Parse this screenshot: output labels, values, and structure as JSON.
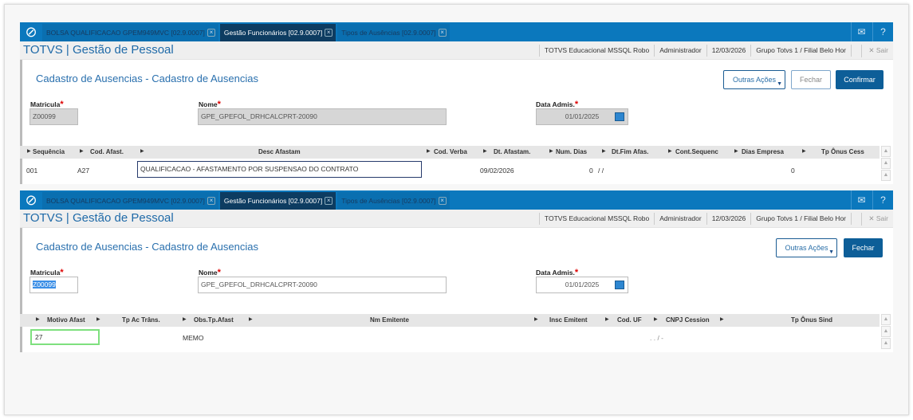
{
  "tabs": [
    {
      "label": "BOLSA QUALIFICACAO GPEM949MVC [02.9.0007]"
    },
    {
      "label": "Gestão Funcionários [02.9.0007]"
    },
    {
      "label": "Tipos de Ausências [02.9.0007]"
    }
  ],
  "app_title": "TOTVS | Gestão de Pessoal",
  "info": {
    "env": "TOTVS Educacional MSSQL Robo",
    "user": "Administrador",
    "date": "12/03/2026",
    "branch": "Grupo Totvs 1 / Filial Belo Hor",
    "logout": "Sair"
  },
  "icons": {
    "logo": "totvs-logo-icon",
    "mail": "mail-icon",
    "help": "help-icon",
    "close": "close-icon",
    "calendar": "calendar-icon"
  },
  "colors": {
    "tabbar": "#0b78bd",
    "active_tab": "#0d3c61",
    "primary": "#0d5e98",
    "focus": "#6ee06e"
  },
  "screen1": {
    "form_title": "Cadastro de Ausencias - Cadastro de Ausencias",
    "buttons": {
      "other": "Outras Ações",
      "close": "Fechar",
      "confirm": "Confirmar"
    },
    "fields": {
      "matricula_label": "Matricula",
      "matricula": "Z00099",
      "nome_label": "Nome",
      "nome": "GPE_GPEFOL_DRHCALCPRT-20090",
      "admis_label": "Data Admis.",
      "admis": "01/01/2025"
    },
    "columns": [
      "Sequência",
      "Cod. Afast.",
      "Desc Afastam",
      "Cod. Verba",
      "Dt. Afastam.",
      "Num. Dias",
      "Dt.Fim Afas.",
      "Cont.Sequenc",
      "Dias Empresa",
      "Tp Ônus Cess"
    ],
    "row": {
      "seq": "001",
      "cod": "A27",
      "desc": "QUALIFICACAO - AFASTAMENTO POR SUSPENSAO DO CONTRATO",
      "dt": "09/02/2026",
      "dias": "0",
      "dtfim": "/ /",
      "empresa": "0"
    }
  },
  "screen2": {
    "form_title": "Cadastro de Ausencias - Cadastro de Ausencias",
    "buttons": {
      "other": "Outras Ações",
      "close": "Fechar"
    },
    "fields": {
      "matricula_label": "Matricula",
      "matricula": "Z00099",
      "nome_label": "Nome",
      "nome": "GPE_GPEFOL_DRHCALCPRT-20090",
      "admis_label": "Data Admis.",
      "admis": "01/01/2025"
    },
    "columns": [
      "Motivo Afast",
      "Tp Ac Trâns.",
      "Obs.Tp.Afast",
      "Nm Emitente",
      "Insc Emitent",
      "Cod. UF",
      "CNPJ Cession",
      "Tp Ônus Sind"
    ],
    "row": {
      "motivo": "27",
      "obs": "MEMO",
      "cnpj": ". . / -"
    }
  }
}
